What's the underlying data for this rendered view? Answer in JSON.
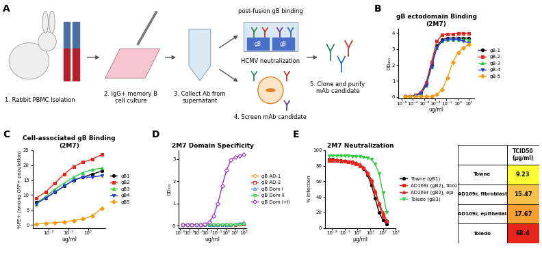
{
  "panel_labels": [
    "A",
    "B",
    "C",
    "D",
    "E"
  ],
  "diagram": {
    "steps": [
      "1. Rabbit PBMC Isolation",
      "2. IgG+ memory B\ncell culture",
      "3. Collect Ab from\nsupernatant",
      "4. Screen mAb candidate",
      "5. Clone and purify\nmAb candidate"
    ],
    "screens": [
      "post-fusion gB binding",
      "HCMV neutralization"
    ],
    "plate_labels": [
      "gB",
      "gB"
    ]
  },
  "chart_data": [
    {
      "type": "line",
      "title": "gB ectodomain Binding\n(2M7)",
      "xlabel": "ug/ml",
      "ylabel": "OD₄₅₀",
      "log": "x",
      "grid": false,
      "legend": "center left",
      "x": [
        10,
        3.33,
        1.11,
        0.37,
        0.123,
        0.041,
        0.0137,
        0.00457,
        0.00152,
        0.000508,
        0.000169,
        5.6e-05,
        1.9e-05
      ],
      "xlim": [
        5e-06,
        30
      ],
      "xticks": [
        {
          "value": 1e-05,
          "label": "10⁻⁵"
        },
        {
          "value": 0.0001,
          "label": "10⁻⁴"
        },
        {
          "value": 0.001,
          "label": "10⁻³"
        },
        {
          "value": 0.01,
          "label": "10⁻²"
        },
        {
          "value": 0.1,
          "label": "10⁻¹"
        },
        {
          "value": 1,
          "label": "10⁰"
        },
        {
          "value": 10,
          "label": "10¹"
        }
      ],
      "ylim": [
        -0.1,
        4.3
      ],
      "yticks": [
        0,
        1,
        2,
        3,
        4
      ],
      "series": [
        {
          "name": "gB-1",
          "color": "#000000",
          "marker": "circle",
          "values": [
            3.7,
            3.7,
            3.7,
            3.7,
            3.7,
            3.6,
            3.2,
            2.0,
            0.8,
            0.25,
            0.08,
            0.03,
            0.02
          ]
        },
        {
          "name": "gB-2",
          "color": "#e8261c",
          "marker": "square",
          "values": [
            4.0,
            4.0,
            4.0,
            3.95,
            3.95,
            3.9,
            3.5,
            2.2,
            0.9,
            0.3,
            0.1,
            0.03,
            0.02
          ]
        },
        {
          "name": "gB-3",
          "color": "#2ecc40",
          "marker": "triangle_up",
          "values": [
            3.6,
            3.6,
            3.6,
            3.6,
            3.6,
            3.5,
            3.1,
            1.9,
            0.7,
            0.2,
            0.06,
            0.03,
            0.02
          ]
        },
        {
          "name": "gB-4",
          "color": "#1f3fd6",
          "marker": "triangle_down",
          "values": [
            3.4,
            3.5,
            3.6,
            3.6,
            3.6,
            3.5,
            3.1,
            1.9,
            0.7,
            0.2,
            0.07,
            0.03,
            0.02
          ]
        },
        {
          "name": "gB-5",
          "color": "#f39c12",
          "marker": "diamond",
          "values": [
            3.3,
            3.1,
            2.8,
            2.2,
            1.2,
            0.45,
            0.15,
            0.05,
            0.03,
            0.02,
            0.02,
            0.02,
            0.02
          ]
        }
      ]
    },
    {
      "type": "line",
      "title": "Cell-associated gB Binding\n(2M7)",
      "xlabel": "ug/ml",
      "ylabel": "%PE+ (among GFP+ population)",
      "log": "x",
      "grid": false,
      "legend": "center left",
      "x": [
        0.0023,
        0.0069,
        0.021,
        0.062,
        0.185,
        0.556,
        1.67,
        5
      ],
      "xlim": [
        0.0015,
        8
      ],
      "xticks": [
        {
          "value": 0.01,
          "label": "10⁻²"
        },
        {
          "value": 0.1,
          "label": "10⁻¹"
        },
        {
          "value": 1,
          "label": "10⁰"
        }
      ],
      "ylim": [
        -1,
        25
      ],
      "yticks": [
        0,
        5,
        10,
        15,
        20,
        25
      ],
      "series": [
        {
          "name": "gB1",
          "color": "#000000",
          "marker": "circle",
          "values": [
            7.5,
            9,
            11,
            13,
            15,
            16,
            17,
            18
          ]
        },
        {
          "name": "gB2",
          "color": "#e8261c",
          "marker": "square",
          "values": [
            9,
            11,
            14,
            17,
            19.5,
            21,
            22,
            23.5
          ]
        },
        {
          "name": "gB3",
          "color": "#2ecc40",
          "marker": "triangle_up",
          "values": [
            7,
            9.5,
            12,
            14,
            16,
            17.5,
            18.5,
            19
          ]
        },
        {
          "name": "gB4",
          "color": "#1f3fd6",
          "marker": "triangle_down",
          "values": [
            7,
            9,
            11,
            13,
            15,
            16,
            16,
            16.5
          ]
        },
        {
          "name": "gB5",
          "color": "#f39c12",
          "marker": "diamond",
          "values": [
            0.3,
            0.5,
            0.8,
            1,
            1.5,
            2,
            3,
            5.5
          ]
        }
      ]
    },
    {
      "type": "line",
      "title": "2M7 Domain Specificity",
      "xlabel": "ug/ml",
      "ylabel": "OD₄₅₀",
      "log": "x",
      "grid": false,
      "legend": "center left",
      "x": [
        100,
        33,
        11,
        3.7,
        1.2,
        0.41,
        0.137,
        0.046,
        0.015,
        0.005,
        0.0017,
        0.00056,
        0.00019,
        6e-05,
        2e-05
      ],
      "xlim": [
        7e-06,
        200
      ],
      "xticks": [
        {
          "value": 1e-05,
          "label": "10⁻⁵"
        },
        {
          "value": 0.0001,
          "label": "10⁻⁴"
        },
        {
          "value": 0.001,
          "label": "10⁻³"
        },
        {
          "value": 0.01,
          "label": "10⁻²"
        },
        {
          "value": 0.1,
          "label": "10⁻¹"
        },
        {
          "value": 1,
          "label": "10⁰"
        },
        {
          "value": 10,
          "label": "10¹"
        },
        {
          "value": 100,
          "label": "10²"
        }
      ],
      "ylim": [
        -0.1,
        3.4
      ],
      "yticks": [
        0,
        1,
        2,
        3
      ],
      "series": [
        {
          "name": "gB AD-1",
          "color": "#f39c12",
          "marker": "open_circle",
          "values": [
            0.08,
            0.06,
            0.05,
            0.05,
            0.04,
            0.04,
            0.04,
            0.03,
            0.03,
            0.03,
            0.03,
            0.03,
            0.03,
            0.03,
            0.03
          ]
        },
        {
          "name": "gB AD-2",
          "color": "#e8261c",
          "marker": "open_square",
          "values": [
            0.07,
            0.06,
            0.05,
            0.05,
            0.04,
            0.04,
            0.04,
            0.03,
            0.03,
            0.03,
            0.03,
            0.03,
            0.03,
            0.03,
            0.03
          ]
        },
        {
          "name": "gB Dom I",
          "color": "#4a90d9",
          "marker": "open_triangle_up",
          "values": [
            0.15,
            0.1,
            0.07,
            0.05,
            0.04,
            0.04,
            0.04,
            0.03,
            0.03,
            0.03,
            0.03,
            0.03,
            0.03,
            0.03,
            0.03
          ]
        },
        {
          "name": "gB Dom II",
          "color": "#2ecc40",
          "marker": "open_triangle_down",
          "values": [
            0.06,
            0.05,
            0.05,
            0.04,
            0.04,
            0.04,
            0.03,
            0.03,
            0.03,
            0.03,
            0.03,
            0.03,
            0.03,
            0.03,
            0.03
          ]
        },
        {
          "name": "gB Dom I+II",
          "color": "#9b30d0",
          "marker": "open_diamond",
          "values": [
            3.2,
            3.15,
            3.1,
            2.95,
            2.5,
            1.8,
            1.0,
            0.45,
            0.15,
            0.07,
            0.04,
            0.03,
            0.03,
            0.03,
            0.03
          ]
        }
      ]
    },
    {
      "type": "line",
      "title": "2M7 Neutralization",
      "xlabel": "μg/ml",
      "ylabel": "% Infection",
      "log": "x",
      "grid": false,
      "legend": "center left",
      "x": [
        200,
        100,
        50,
        25,
        12.5,
        6.25,
        3.13,
        1.56,
        0.78,
        0.39,
        0.2,
        0.1,
        0.05,
        0.025,
        0.012,
        0.006
      ],
      "xlim": [
        0.003,
        1000
      ],
      "xticks": [
        {
          "value": 0.01,
          "label": "10⁻²"
        },
        {
          "value": 0.1,
          "label": "10⁻¹"
        },
        {
          "value": 1,
          "label": "10⁰"
        },
        {
          "value": 10,
          "label": "10¹"
        },
        {
          "value": 100,
          "label": "10²"
        },
        {
          "value": 1000,
          "label": "10³"
        }
      ],
      "ylim": [
        0,
        100
      ],
      "yticks": [
        0,
        20,
        40,
        60,
        80,
        100
      ],
      "series": [
        {
          "name": "Towne (gB1)",
          "color": "#000000",
          "marker": "circle",
          "values": [
            5,
            10,
            20,
            38,
            55,
            68,
            76,
            80,
            83,
            85,
            85,
            86,
            87,
            87,
            88,
            88
          ]
        },
        {
          "name": "AD169r (gB2), fibro",
          "color": "#e8261c",
          "marker": "square",
          "values": [
            8,
            15,
            30,
            45,
            60,
            70,
            77,
            80,
            82,
            84,
            85,
            86,
            86,
            87,
            87,
            87
          ]
        },
        {
          "name": "AD169r (gB2), epi",
          "color": "#e8261c",
          "marker": "triangle_up",
          "values": [
            10,
            20,
            32,
            48,
            62,
            72,
            78,
            82,
            84,
            86,
            86,
            87,
            87,
            88,
            88,
            88
          ]
        },
        {
          "name": "Toledo (gB3)",
          "color": "#2ecc40",
          "marker": "triangle_down",
          "values": [
            20,
            45,
            70,
            82,
            88,
            90,
            91,
            92,
            92,
            92,
            93,
            93,
            93,
            93,
            93,
            93
          ]
        }
      ]
    }
  ],
  "table": {
    "column_header": "TCID50\n(μg/ml)",
    "rows": [
      [
        "Towne",
        9.23
      ],
      [
        "AD169r, fibroblast",
        15.47
      ],
      [
        "AD169r, epithelial",
        17.67
      ],
      [
        "Toledo",
        68.4
      ]
    ],
    "colors": [
      "#ffff33",
      "#f7c04b",
      "#f5a030",
      "#e8261c"
    ]
  }
}
